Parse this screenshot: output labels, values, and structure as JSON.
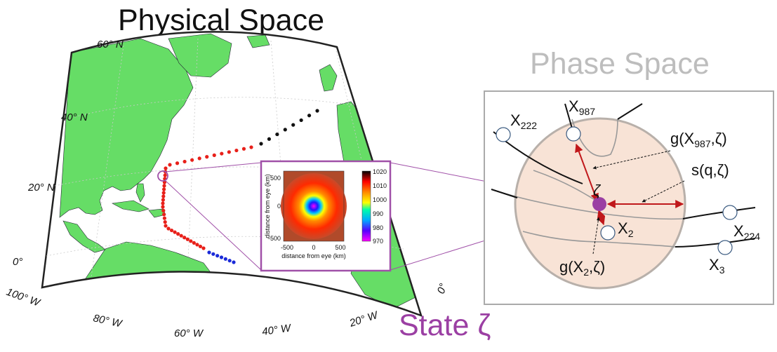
{
  "titles": {
    "physical": "Physical Space",
    "phase": "Phase Space",
    "state": "State ζ"
  },
  "map": {
    "lat_labels": [
      "60° N",
      "40° N",
      "20° N",
      "0°"
    ],
    "lon_labels": [
      "100° W",
      "80° W",
      "60° W",
      "40° W",
      "20° W",
      "0°"
    ]
  },
  "inset": {
    "xlabel": "distance from eye (km)",
    "ylabel": "distance from eye (km)",
    "x_ticks": [
      "-500",
      "0",
      "500"
    ],
    "y_ticks": [
      "500",
      "0",
      "-500"
    ],
    "colorbar_ticks": [
      "1020",
      "1010",
      "1000",
      "990",
      "980",
      "970"
    ]
  },
  "phase": {
    "nodes": {
      "x222": {
        "base": "X",
        "sub": "222"
      },
      "x987": {
        "base": "X",
        "sub": "987"
      },
      "x2": {
        "base": "X",
        "sub": "2"
      },
      "x224": {
        "base": "X",
        "sub": "224"
      },
      "x3": {
        "base": "X",
        "sub": "3"
      }
    },
    "state_symbol": "ζ",
    "g987": "g(X987,ζ)",
    "g987_parts": {
      "pre": "g(X",
      "sub": "987",
      "post": ",ζ)"
    },
    "g2_parts": {
      "pre": "g(X",
      "sub": "2",
      "post": ",ζ)"
    },
    "s": "s(q,ζ)"
  },
  "colors": {
    "land": "#66dd66",
    "track_red": "#e8201a",
    "track_blue": "#1a2ad8",
    "inset_frame": "#a050a8",
    "state_dot": "#9b3fa3",
    "arrow": "#c0181b",
    "ball_fill": "#f8e3d6",
    "phase_title": "#bdbdbd",
    "state_title": "#9b3fa3"
  }
}
